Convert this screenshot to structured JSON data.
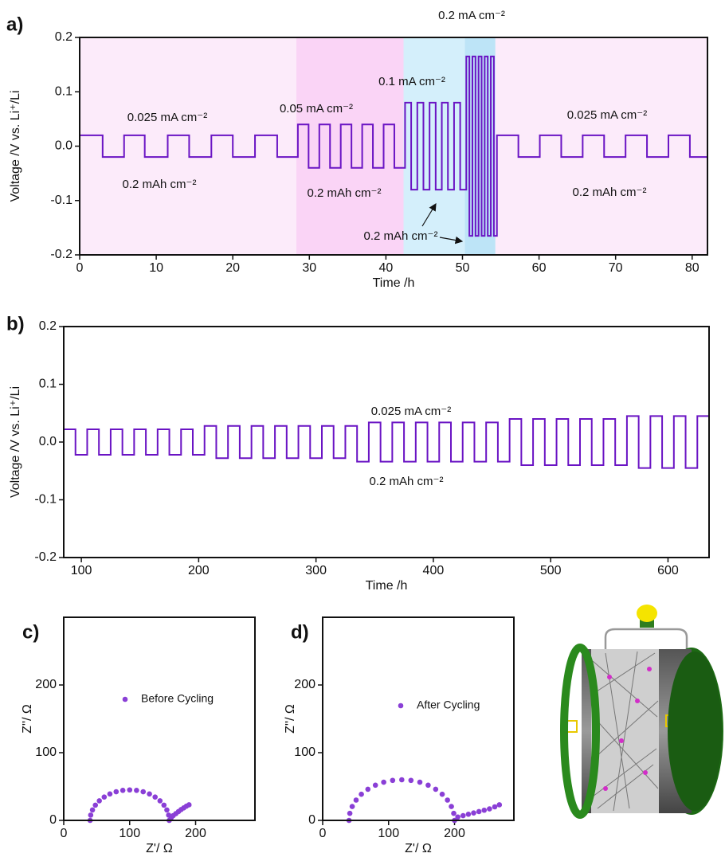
{
  "chart_data": [
    {
      "type": "line",
      "panel": "a)",
      "xlabel": "Time /h",
      "ylabel": "Voltage /V vs. Li⁺/Li",
      "color": "#6a14c4",
      "xlim": [
        0,
        82
      ],
      "ylim": [
        -0.2,
        0.2
      ],
      "xticks": [
        0,
        10,
        20,
        30,
        40,
        50,
        60,
        70,
        80
      ],
      "yticks": [
        -0.2,
        -0.1,
        {
          "value": 0,
          "label": "0.0"
        },
        0.1,
        0.2
      ],
      "bands": [
        {
          "from": 0,
          "to": 28.3,
          "color": "#fcebfa"
        },
        {
          "from": 28.3,
          "to": 42.3,
          "color": "#fad4f6"
        },
        {
          "from": 42.3,
          "to": 50.3,
          "color": "#d4effb"
        },
        {
          "from": 50.3,
          "to": 54.3,
          "color": "#bde4f7"
        },
        {
          "from": 54.3,
          "to": 82,
          "color": "#fcebfa"
        }
      ],
      "annotations": [
        "0.025 mA cm⁻²",
        "0.2 mAh cm⁻²",
        "0.05 mA cm⁻²",
        "0.2 mAh cm⁻²",
        "0.1 mA cm⁻²",
        "0.2 mA cm⁻²",
        "0.2 mAh cm⁻²",
        "0.025 mA cm⁻²",
        "0.2 mAh cm⁻²"
      ],
      "x": [
        0,
        3,
        3,
        5.8,
        5.8,
        8.5,
        8.5,
        11.5,
        11.5,
        14.3,
        14.3,
        17.2,
        17.2,
        20,
        20,
        22.9,
        22.9,
        25.8,
        25.8,
        28.5,
        28.5,
        29.9,
        29.9,
        31.3,
        31.3,
        32.7,
        32.7,
        34.1,
        34.1,
        35.5,
        35.5,
        36.9,
        36.9,
        38.3,
        38.3,
        39.7,
        39.7,
        41.1,
        41.1,
        42.5,
        42.5,
        43.3,
        43.3,
        44.1,
        44.1,
        44.9,
        44.9,
        45.7,
        45.7,
        46.5,
        46.5,
        47.3,
        47.3,
        48.1,
        48.1,
        48.9,
        48.9,
        49.7,
        49.7,
        50.5,
        50.5,
        50.9,
        50.9,
        51.3,
        51.3,
        51.7,
        51.7,
        52.1,
        52.1,
        52.5,
        52.5,
        52.9,
        52.9,
        53.3,
        53.3,
        53.7,
        53.7,
        54.1,
        54.1,
        54.5,
        54.5,
        57.3,
        57.3,
        60.1,
        60.1,
        62.9,
        62.9,
        65.7,
        65.7,
        68.5,
        68.5,
        71.3,
        71.3,
        74.1,
        74.1,
        76.9,
        76.9,
        79.7,
        79.7,
        82
      ],
      "values": [
        0.02,
        0.02,
        -0.02,
        -0.02,
        0.02,
        0.02,
        -0.02,
        -0.02,
        0.02,
        0.02,
        -0.02,
        -0.02,
        0.02,
        0.02,
        -0.02,
        -0.02,
        0.02,
        0.02,
        -0.02,
        -0.02,
        0.04,
        0.04,
        -0.04,
        -0.04,
        0.04,
        0.04,
        -0.04,
        -0.04,
        0.04,
        0.04,
        -0.04,
        -0.04,
        0.04,
        0.04,
        -0.04,
        -0.04,
        0.04,
        0.04,
        -0.04,
        -0.04,
        0.08,
        0.08,
        -0.08,
        -0.08,
        0.08,
        0.08,
        -0.08,
        -0.08,
        0.08,
        0.08,
        -0.08,
        -0.08,
        0.08,
        0.08,
        -0.08,
        -0.08,
        0.08,
        0.08,
        -0.08,
        -0.08,
        0.165,
        0.165,
        -0.165,
        -0.165,
        0.165,
        0.165,
        -0.165,
        -0.165,
        0.165,
        0.165,
        -0.165,
        -0.165,
        0.165,
        0.165,
        -0.165,
        -0.165,
        0.165,
        0.165,
        -0.165,
        -0.165,
        0.02,
        0.02,
        -0.02,
        -0.02,
        0.02,
        0.02,
        -0.02,
        -0.02,
        0.02,
        0.02,
        -0.02,
        -0.02,
        0.02,
        0.02,
        -0.02,
        -0.02,
        0.02,
        0.02,
        -0.02,
        -0.02
      ]
    },
    {
      "type": "line",
      "panel": "b)",
      "xlabel": "Time /h",
      "ylabel": "Voltage /V vs. Li⁺/Li",
      "color": "#6a14c4",
      "xlim": [
        85,
        635
      ],
      "ylim": [
        -0.2,
        0.2
      ],
      "xticks": [
        100,
        200,
        300,
        400,
        500,
        600
      ],
      "yticks": [
        -0.2,
        -0.1,
        {
          "value": 0,
          "label": "0.0"
        },
        0.1,
        0.2
      ],
      "annotations": [
        "0.025 mA cm⁻²",
        "0.2 mAh cm⁻²"
      ],
      "x": [
        85,
        95,
        95,
        105,
        105,
        115,
        115,
        125,
        125,
        135,
        135,
        145,
        145,
        155,
        155,
        165,
        165,
        175,
        175,
        185,
        185,
        195,
        195,
        205,
        205,
        215,
        215,
        225,
        225,
        235,
        235,
        245,
        245,
        255,
        255,
        265,
        265,
        275,
        275,
        285,
        285,
        295,
        295,
        305,
        305,
        315,
        315,
        325,
        325,
        335,
        335,
        345,
        345,
        355,
        355,
        365,
        365,
        375,
        375,
        385,
        385,
        395,
        395,
        405,
        405,
        415,
        415,
        425,
        425,
        435,
        435,
        445,
        445,
        455,
        455,
        465,
        465,
        475,
        475,
        485,
        485,
        495,
        495,
        505,
        505,
        515,
        515,
        525,
        525,
        535,
        535,
        545,
        545,
        555,
        555,
        565,
        565,
        575,
        575,
        585,
        585,
        595,
        595,
        605,
        605,
        615,
        615,
        625,
        625,
        635
      ],
      "values": [
        0.022,
        0.022,
        -0.022,
        -0.022,
        0.022,
        0.022,
        -0.022,
        -0.022,
        0.022,
        0.022,
        -0.022,
        -0.022,
        0.022,
        0.022,
        -0.022,
        -0.022,
        0.022,
        0.022,
        -0.022,
        -0.022,
        0.022,
        0.022,
        -0.022,
        -0.022,
        0.028,
        0.028,
        -0.028,
        -0.028,
        0.028,
        0.028,
        -0.028,
        -0.028,
        0.028,
        0.028,
        -0.028,
        -0.028,
        0.028,
        0.028,
        -0.028,
        -0.028,
        0.028,
        0.028,
        -0.028,
        -0.028,
        0.028,
        0.028,
        -0.028,
        -0.028,
        0.028,
        0.028,
        -0.034,
        -0.034,
        0.034,
        0.034,
        -0.034,
        -0.034,
        0.034,
        0.034,
        -0.034,
        -0.034,
        0.034,
        0.034,
        -0.034,
        -0.034,
        0.034,
        0.034,
        -0.034,
        -0.034,
        0.034,
        0.034,
        -0.034,
        -0.034,
        0.034,
        0.034,
        -0.034,
        -0.034,
        0.04,
        0.04,
        -0.04,
        -0.04,
        0.04,
        0.04,
        -0.04,
        -0.04,
        0.04,
        0.04,
        -0.04,
        -0.04,
        0.04,
        0.04,
        -0.04,
        -0.04,
        0.04,
        0.04,
        -0.04,
        -0.04,
        0.045,
        0.045,
        -0.045,
        -0.045,
        0.045,
        0.045,
        -0.045,
        -0.045,
        0.045,
        0.045,
        -0.045,
        -0.045,
        0.045,
        0.045
      ]
    },
    {
      "type": "scatter",
      "panel": "c)",
      "xlabel": "Z'/ Ω",
      "ylabel": "Z''/ Ω",
      "xlim": [
        0,
        290
      ],
      "ylim": [
        0,
        300
      ],
      "xticks": [
        0,
        100,
        200
      ],
      "yticks": [
        0,
        100,
        200
      ],
      "x": [
        40,
        40.9,
        43.6,
        48,
        54,
        61.4,
        70,
        79.5,
        89.6,
        100,
        110.4,
        120.5,
        130,
        138.6,
        146,
        152,
        156.4,
        159.1,
        160,
        163,
        166,
        170,
        174,
        178,
        182,
        186,
        190
      ],
      "series": [
        {
          "name": "Before Cycling",
          "color": "#8a3fd6",
          "values": [
            0,
            7.8,
            15.4,
            22.5,
            28.9,
            34.5,
            39,
            42.3,
            44.3,
            45,
            44.3,
            42.3,
            39,
            34.5,
            28.9,
            22.5,
            15.4,
            7.8,
            0,
            4,
            7,
            10,
            13,
            16,
            18.5,
            21,
            23
          ]
        }
      ]
    },
    {
      "type": "scatter",
      "panel": "d)",
      "xlabel": "Z'/ Ω",
      "ylabel": "Z''/ Ω",
      "xlim": [
        0,
        290
      ],
      "ylim": [
        0,
        300
      ],
      "xticks": [
        0,
        100,
        200
      ],
      "yticks": [
        0,
        100,
        200
      ],
      "x": [
        40,
        41.2,
        44.8,
        50.7,
        58.7,
        68.6,
        80,
        92.6,
        106.1,
        120,
        133.9,
        147.4,
        160,
        171.4,
        181.3,
        189.3,
        195.2,
        198.8,
        200,
        205,
        213,
        221,
        229,
        237,
        245,
        253,
        261,
        268
      ],
      "series": [
        {
          "name": "After Cycling",
          "color": "#8a3fd6",
          "values": [
            0,
            10.4,
            20.5,
            30,
            38.6,
            46,
            52,
            56.4,
            59.1,
            60,
            59.1,
            56.4,
            52,
            46,
            38.6,
            30,
            20.5,
            10.4,
            0,
            5,
            7,
            9,
            11,
            13,
            15,
            17,
            20,
            23
          ]
        }
      ]
    }
  ]
}
